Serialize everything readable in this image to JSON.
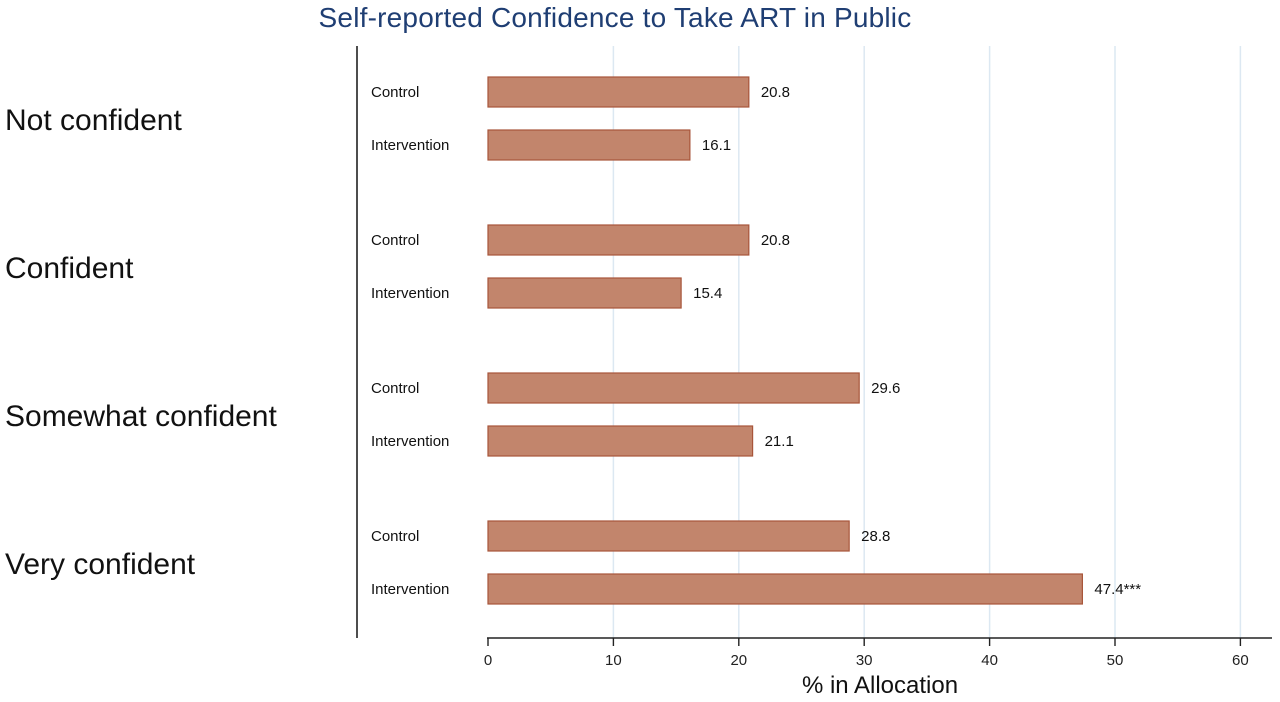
{
  "chart_data": {
    "type": "bar",
    "orientation": "horizontal",
    "title": "Self-reported Confidence to Take ART in Public",
    "xlabel": "% in Allocation",
    "ylabel": "",
    "xlim": [
      0,
      60
    ],
    "xticks": [
      0,
      10,
      20,
      30,
      40,
      50,
      60
    ],
    "grid": true,
    "groups": [
      {
        "label": "Not confident",
        "bars": [
          {
            "label": "Control",
            "value": 20.8,
            "value_label": "20.8"
          },
          {
            "label": "Intervention",
            "value": 16.1,
            "value_label": "16.1"
          }
        ]
      },
      {
        "label": "Confident",
        "bars": [
          {
            "label": "Control",
            "value": 20.8,
            "value_label": "20.8"
          },
          {
            "label": "Intervention",
            "value": 15.4,
            "value_label": "15.4"
          }
        ]
      },
      {
        "label": "Somewhat confident",
        "bars": [
          {
            "label": "Control",
            "value": 29.6,
            "value_label": "29.6"
          },
          {
            "label": "Intervention",
            "value": 21.1,
            "value_label": "21.1"
          }
        ]
      },
      {
        "label": "Very confident",
        "bars": [
          {
            "label": "Control",
            "value": 28.8,
            "value_label": "28.8"
          },
          {
            "label": "Intervention",
            "value": 47.4,
            "value_label": "47.4***"
          }
        ]
      }
    ],
    "colors": {
      "bar_fill": "#c2856c",
      "bar_stroke": "#a8553a",
      "grid": "#dce8f2",
      "title": "#1f3e73"
    }
  }
}
